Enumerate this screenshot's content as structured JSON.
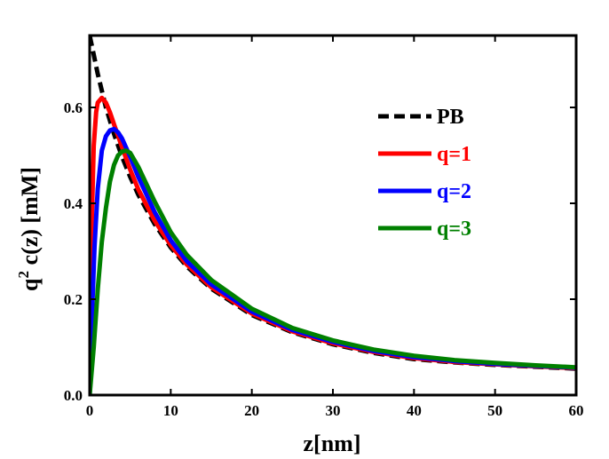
{
  "chart_data": {
    "type": "line",
    "xlabel": "z[nm]",
    "ylabel_prefix": "q",
    "ylabel_sup": "2",
    "ylabel_suffix": " c(z)  [mM]",
    "xlim": [
      0,
      60
    ],
    "ylim": [
      0,
      0.75
    ],
    "xticks": [
      0,
      10,
      20,
      30,
      40,
      50,
      60
    ],
    "yticks": [
      0.0,
      0.2,
      0.4,
      0.6
    ],
    "ytick_labels": [
      "0.0",
      "0.2",
      "0.4",
      "0.6"
    ],
    "grid": false,
    "legend_position": "upper-right",
    "series": [
      {
        "name": "PB",
        "color": "#000000",
        "dash": "dashed",
        "x": [
          0,
          0.5,
          1,
          1.5,
          2,
          3,
          4,
          5,
          6,
          8,
          10,
          12,
          15,
          20,
          25,
          30,
          35,
          40,
          45,
          50,
          55,
          60
        ],
        "y": [
          0.75,
          0.71,
          0.67,
          0.635,
          0.6,
          0.545,
          0.497,
          0.455,
          0.418,
          0.357,
          0.308,
          0.268,
          0.222,
          0.167,
          0.131,
          0.106,
          0.088,
          0.075,
          0.068,
          0.063,
          0.059,
          0.055
        ]
      },
      {
        "name": "q=1",
        "color": "#ff0000",
        "dash": "solid",
        "x": [
          0,
          0.2,
          0.5,
          0.8,
          1.0,
          1.5,
          2,
          2.5,
          3,
          4,
          5,
          6,
          8,
          10,
          12,
          15,
          20,
          25,
          30,
          35,
          40,
          45,
          50,
          55,
          60
        ],
        "y": [
          0.0,
          0.32,
          0.52,
          0.59,
          0.61,
          0.62,
          0.61,
          0.59,
          0.565,
          0.517,
          0.47,
          0.429,
          0.364,
          0.313,
          0.272,
          0.225,
          0.17,
          0.133,
          0.108,
          0.09,
          0.077,
          0.069,
          0.064,
          0.06,
          0.056
        ]
      },
      {
        "name": "q=2",
        "color": "#0000ff",
        "dash": "solid",
        "x": [
          0,
          0.3,
          0.6,
          1.0,
          1.5,
          2,
          2.5,
          3,
          3.5,
          4,
          5,
          6,
          8,
          10,
          12,
          15,
          20,
          25,
          30,
          35,
          40,
          45,
          50,
          55,
          60
        ],
        "y": [
          0.0,
          0.17,
          0.31,
          0.43,
          0.51,
          0.54,
          0.552,
          0.555,
          0.548,
          0.535,
          0.497,
          0.455,
          0.382,
          0.323,
          0.279,
          0.231,
          0.174,
          0.136,
          0.111,
          0.092,
          0.079,
          0.071,
          0.065,
          0.061,
          0.057
        ]
      },
      {
        "name": "q=3",
        "color": "#008000",
        "dash": "solid",
        "x": [
          0,
          0.5,
          1.0,
          1.5,
          2,
          2.5,
          3,
          3.5,
          4,
          4.5,
          5,
          6,
          8,
          10,
          12,
          15,
          20,
          25,
          30,
          35,
          40,
          45,
          50,
          55,
          60
        ],
        "y": [
          0.0,
          0.1,
          0.22,
          0.32,
          0.39,
          0.445,
          0.48,
          0.5,
          0.508,
          0.51,
          0.505,
          0.476,
          0.404,
          0.34,
          0.292,
          0.24,
          0.18,
          0.14,
          0.114,
          0.095,
          0.082,
          0.073,
          0.067,
          0.062,
          0.058
        ]
      }
    ]
  }
}
